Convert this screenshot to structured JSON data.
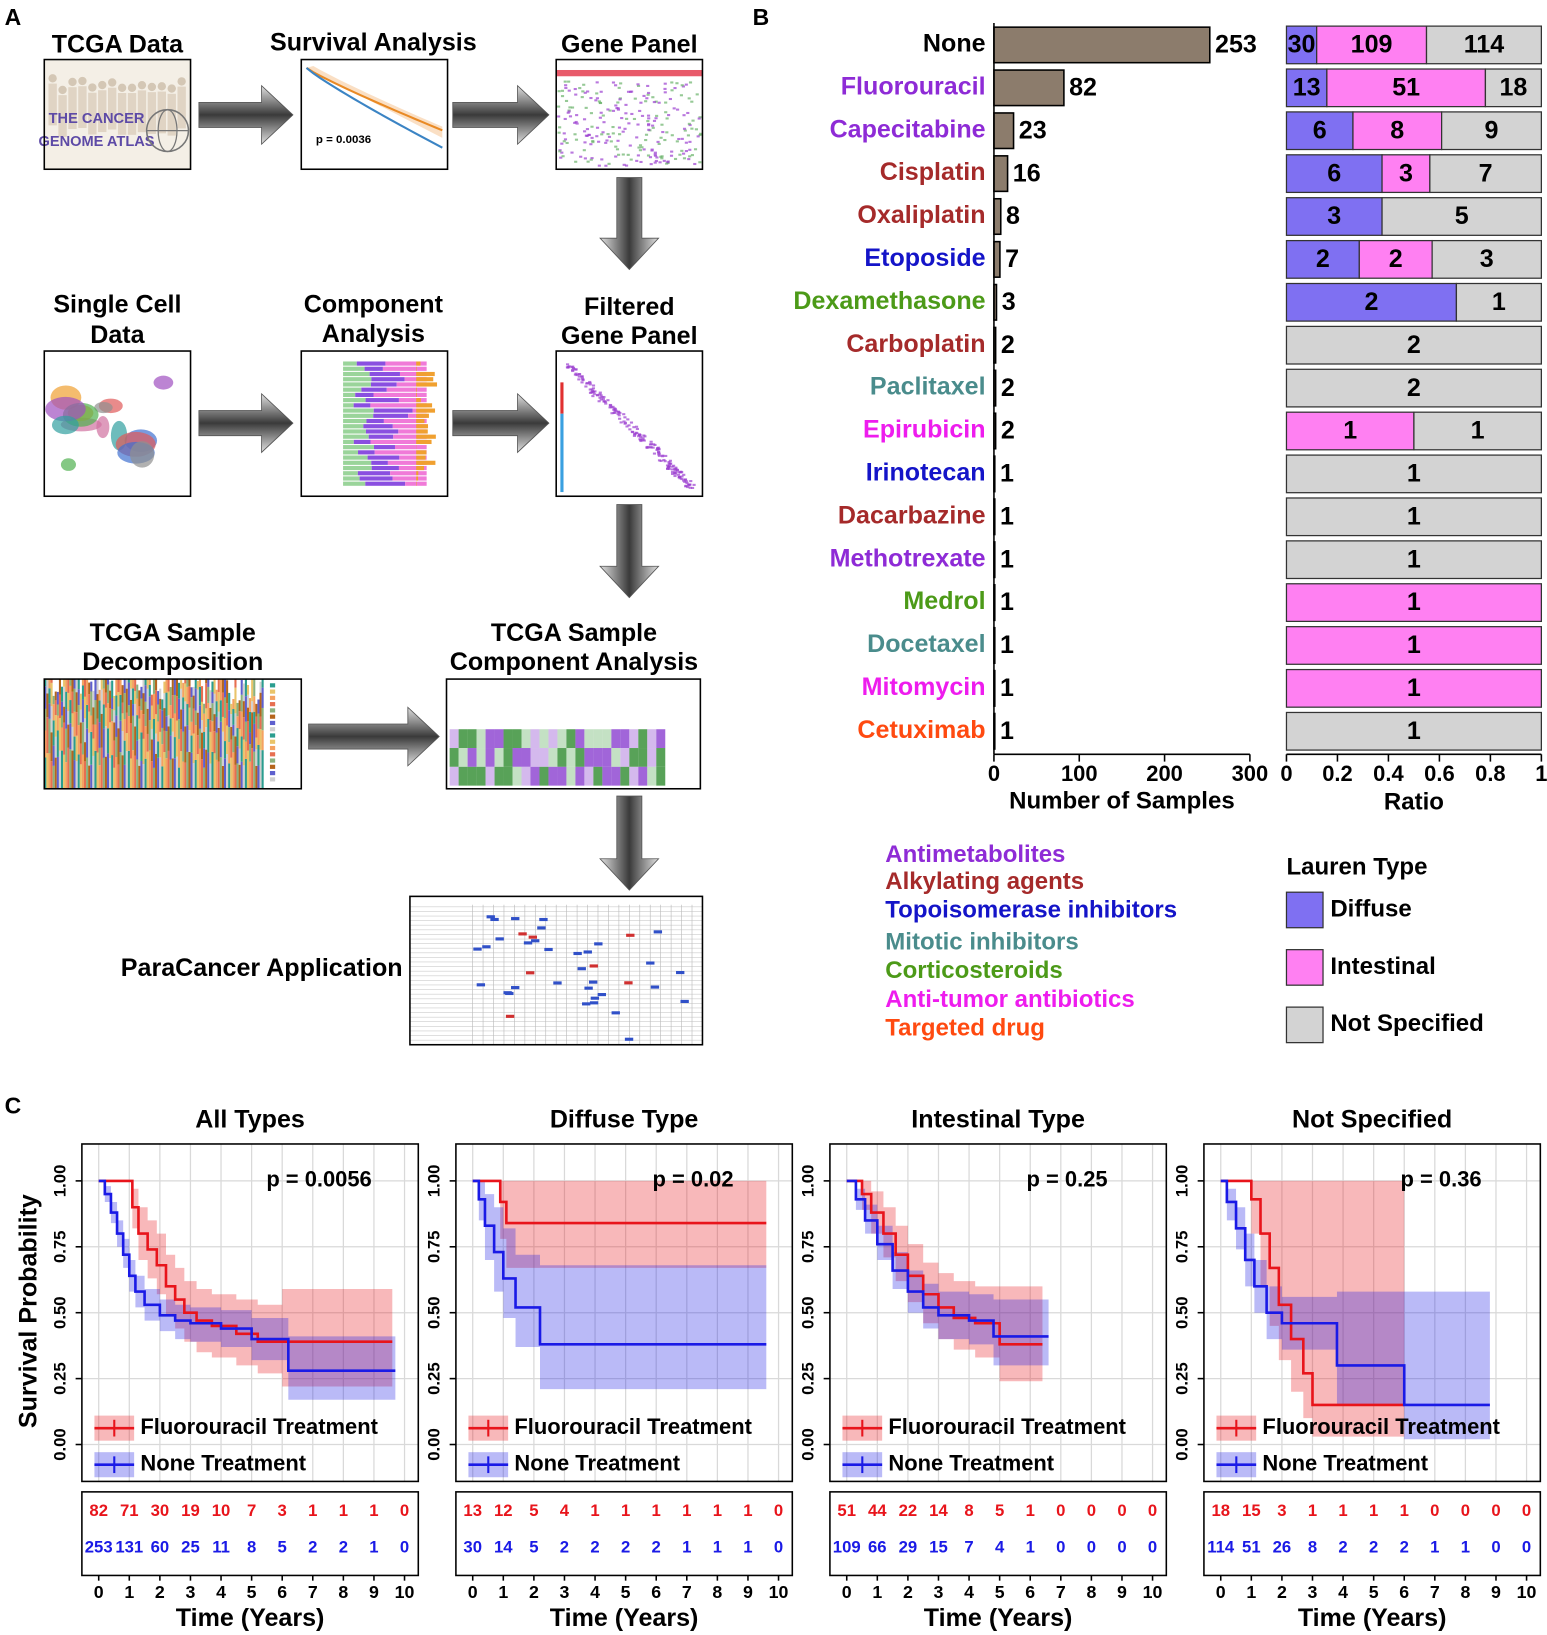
{
  "panel_labels": [
    "A",
    "B",
    "C"
  ],
  "diagram": {
    "steps": [
      {
        "title": [
          "TCGA Data"
        ]
      },
      {
        "title": [
          "Survival Analysis"
        ]
      },
      {
        "title": [
          "Gene Panel"
        ]
      },
      {
        "title": [
          "Single Cell",
          "Data"
        ]
      },
      {
        "title": [
          "Component",
          "Analysis"
        ]
      },
      {
        "title": [
          "Filtered",
          "Gene Panel"
        ]
      },
      {
        "title": [
          "TCGA Sample",
          "Decomposition"
        ]
      },
      {
        "title": [
          "TCGA Sample",
          "Component Analysis"
        ]
      },
      {
        "title": [
          "ParaCancer Application"
        ]
      }
    ],
    "tcga_logo": [
      "THE CANCER",
      "GENOME ATLAS"
    ],
    "survival_p": "p = 0.0036"
  },
  "chart_data": [
    {
      "type": "barh",
      "categories": [
        "None",
        "Fluorouracil",
        "Capecitabine",
        "Cisplatin",
        "Oxaliplatin",
        "Etoposide",
        "Dexamethasone",
        "Carboplatin",
        "Paclitaxel",
        "Epirubicin",
        "Irinotecan",
        "Dacarbazine",
        "Methotrexate",
        "Medrol",
        "Docetaxel",
        "Mitomycin",
        "Cetuximab"
      ],
      "category_colors": [
        "#000000",
        "#8e2bd6",
        "#8e2bd6",
        "#a52a2a",
        "#a52a2a",
        "#1414c8",
        "#4c9a18",
        "#a52a2a",
        "#4a8c8c",
        "#ee1cee",
        "#1414c8",
        "#a52a2a",
        "#8e2bd6",
        "#4c9a18",
        "#4a8c8c",
        "#ee1cee",
        "#ff4a10"
      ],
      "values": [
        253,
        82,
        23,
        16,
        8,
        7,
        3,
        2,
        2,
        2,
        1,
        1,
        1,
        1,
        1,
        1,
        1
      ],
      "color": "#8c7c6c",
      "xlim": [
        0,
        300
      ],
      "xticks": [
        0,
        100,
        200,
        300
      ],
      "xlabel": "Number of Samples",
      "class_legend": [
        {
          "name": "Antimetabolites",
          "color": "#8e2bd6"
        },
        {
          "name": "Alkylating agents",
          "color": "#a52a2a"
        },
        {
          "name": "Topoisomerase inhibitors",
          "color": "#1414c8"
        },
        {
          "name": "Mitotic inhibitors",
          "color": "#4a8c8c"
        },
        {
          "name": "Corticosteroids",
          "color": "#4c9a18"
        },
        {
          "name": "Anti-tumor antibiotics",
          "color": "#ee1cee"
        },
        {
          "name": "Targeted drug",
          "color": "#ff4a10"
        }
      ]
    },
    {
      "type": "stacked_ratio",
      "xlabel": "Ratio",
      "xlim": [
        0,
        1
      ],
      "xticks": [
        0,
        0.2,
        0.4,
        0.6,
        0.8,
        1
      ],
      "legend_title": "Lauren Type",
      "series": [
        {
          "name": "Diffuse",
          "color": "#7f70f2",
          "values": [
            30,
            13,
            6,
            6,
            3,
            2,
            2,
            0,
            0,
            0,
            0,
            0,
            0,
            0,
            0,
            0,
            0
          ]
        },
        {
          "name": "Intestinal",
          "color": "#ff80f2",
          "values": [
            109,
            51,
            8,
            3,
            0,
            2,
            0,
            0,
            0,
            1,
            0,
            0,
            0,
            1,
            1,
            1,
            0
          ]
        },
        {
          "name": "Not Specified",
          "color": "#d3d3d3",
          "values": [
            114,
            18,
            9,
            7,
            5,
            3,
            1,
            2,
            2,
            1,
            1,
            1,
            1,
            0,
            0,
            0,
            1
          ]
        }
      ]
    },
    {
      "type": "km",
      "title": "All Types",
      "annotation": "p = 0.0056",
      "xlabel": "Time (Years)",
      "ylabel": "Survival Probability",
      "xlim": [
        -0.55,
        10.45
      ],
      "ylim": [
        -0.14,
        1.14
      ],
      "grid": true,
      "xticks": [
        0,
        1,
        2,
        3,
        4,
        5,
        6,
        7,
        8,
        9,
        10
      ],
      "yticks": [
        {
          "value": 0,
          "label": "0.00"
        },
        {
          "value": 0.25,
          "label": "0.25"
        },
        {
          "value": 0.5,
          "label": "0.50"
        },
        {
          "value": 0.75,
          "label": "0.75"
        },
        {
          "value": 1,
          "label": "1.00"
        }
      ],
      "series": [
        {
          "name": "Fluorouracil Treatment",
          "color": "#e8141b",
          "x": [
            0,
            1.1,
            1.3,
            1.6,
            1.9,
            2.2,
            2.5,
            2.8,
            3.2,
            3.7,
            4.5,
            5.2,
            6.0,
            9.6
          ],
          "values": [
            1,
            0.9,
            0.8,
            0.74,
            0.68,
            0.6,
            0.55,
            0.5,
            0.47,
            0.45,
            0.42,
            0.39,
            0.39,
            0.39
          ],
          "lower": [
            1,
            0.82,
            0.7,
            0.63,
            0.57,
            0.49,
            0.44,
            0.39,
            0.35,
            0.33,
            0.3,
            0.27,
            0.22,
            0.22
          ],
          "upper": [
            1,
            0.97,
            0.9,
            0.85,
            0.8,
            0.72,
            0.67,
            0.62,
            0.59,
            0.57,
            0.55,
            0.53,
            0.59,
            0.59
          ],
          "at_risk": [
            82,
            71,
            30,
            19,
            10,
            7,
            3,
            1,
            1,
            1,
            0
          ]
        },
        {
          "name": "None Treatment",
          "color": "#1a1ae6",
          "x": [
            0,
            0.2,
            0.4,
            0.6,
            0.8,
            1.0,
            1.2,
            1.5,
            2.0,
            2.5,
            3.0,
            4.0,
            5.0,
            6.2,
            9.7
          ],
          "values": [
            1,
            0.95,
            0.88,
            0.8,
            0.72,
            0.64,
            0.58,
            0.53,
            0.49,
            0.47,
            0.46,
            0.44,
            0.4,
            0.28,
            0.28
          ],
          "lower": [
            1,
            0.92,
            0.84,
            0.75,
            0.67,
            0.58,
            0.52,
            0.47,
            0.43,
            0.4,
            0.39,
            0.37,
            0.32,
            0.17,
            0.17
          ],
          "upper": [
            1,
            0.98,
            0.92,
            0.85,
            0.78,
            0.7,
            0.64,
            0.59,
            0.55,
            0.53,
            0.52,
            0.51,
            0.48,
            0.41,
            0.41
          ],
          "at_risk": [
            253,
            131,
            60,
            25,
            11,
            8,
            5,
            2,
            2,
            1,
            0
          ]
        }
      ]
    },
    {
      "type": "km",
      "title": "Diffuse Type",
      "annotation": "p = 0.02",
      "xlabel": "Time (Years)",
      "xlim": [
        -0.55,
        10.45
      ],
      "ylim": [
        -0.14,
        1.14
      ],
      "grid": true,
      "xticks": [
        0,
        1,
        2,
        3,
        4,
        5,
        6,
        7,
        8,
        9,
        10
      ],
      "yticks": [
        {
          "value": 0,
          "label": "0.00"
        },
        {
          "value": 0.25,
          "label": "0.25"
        },
        {
          "value": 0.5,
          "label": "0.50"
        },
        {
          "value": 0.75,
          "label": "0.75"
        },
        {
          "value": 1,
          "label": "1.00"
        }
      ],
      "series": [
        {
          "name": "Fluorouracil Treatment",
          "color": "#e8141b",
          "x": [
            0,
            0.9,
            1.1,
            9.6
          ],
          "values": [
            1,
            0.92,
            0.84,
            0.84
          ],
          "lower": [
            1,
            0.78,
            0.67,
            0.67
          ],
          "upper": [
            1,
            1,
            1,
            1
          ],
          "at_risk": [
            13,
            12,
            5,
            4,
            1,
            1,
            1,
            1,
            1,
            1,
            0
          ]
        },
        {
          "name": "None Treatment",
          "color": "#1a1ae6",
          "x": [
            0,
            0.2,
            0.4,
            0.7,
            1.0,
            1.4,
            2.2,
            9.6
          ],
          "values": [
            1,
            0.93,
            0.83,
            0.73,
            0.63,
            0.52,
            0.38,
            0.38
          ],
          "lower": [
            1,
            0.85,
            0.7,
            0.58,
            0.48,
            0.37,
            0.21,
            0.21
          ],
          "upper": [
            1,
            1,
            0.95,
            0.9,
            0.82,
            0.72,
            0.68,
            0.68
          ],
          "at_risk": [
            30,
            14,
            5,
            2,
            2,
            2,
            2,
            1,
            1,
            1,
            0
          ]
        }
      ]
    },
    {
      "type": "km",
      "title": "Intestinal Type",
      "annotation": "p = 0.25",
      "xlabel": "Time (Years)",
      "xlim": [
        -0.55,
        10.45
      ],
      "ylim": [
        -0.14,
        1.14
      ],
      "grid": true,
      "xticks": [
        0,
        1,
        2,
        3,
        4,
        5,
        6,
        7,
        8,
        9,
        10
      ],
      "yticks": [
        {
          "value": 0,
          "label": "0.00"
        },
        {
          "value": 0.25,
          "label": "0.25"
        },
        {
          "value": 0.5,
          "label": "0.50"
        },
        {
          "value": 0.75,
          "label": "0.75"
        },
        {
          "value": 1,
          "label": "1.00"
        }
      ],
      "series": [
        {
          "name": "Fluorouracil Treatment",
          "color": "#e8141b",
          "x": [
            0,
            0.5,
            0.8,
            1.2,
            1.6,
            2.0,
            2.5,
            3.0,
            3.5,
            4.2,
            5.0,
            6.4
          ],
          "values": [
            1,
            0.95,
            0.88,
            0.8,
            0.72,
            0.64,
            0.57,
            0.52,
            0.48,
            0.46,
            0.38,
            0.38
          ],
          "lower": [
            1,
            0.89,
            0.8,
            0.71,
            0.62,
            0.54,
            0.46,
            0.4,
            0.36,
            0.33,
            0.24,
            0.24
          ],
          "upper": [
            1,
            1,
            0.96,
            0.9,
            0.83,
            0.76,
            0.69,
            0.65,
            0.62,
            0.6,
            0.6,
            0.6
          ],
          "at_risk": [
            51,
            44,
            22,
            14,
            8,
            5,
            1,
            0,
            0,
            0,
            0
          ]
        },
        {
          "name": "None Treatment",
          "color": "#1a1ae6",
          "x": [
            0,
            0.3,
            0.6,
            1.0,
            1.5,
            2.0,
            2.5,
            3.0,
            4.0,
            4.8,
            6.6
          ],
          "values": [
            1,
            0.93,
            0.85,
            0.76,
            0.66,
            0.58,
            0.52,
            0.49,
            0.47,
            0.41,
            0.41
          ],
          "lower": [
            1,
            0.89,
            0.8,
            0.7,
            0.59,
            0.5,
            0.44,
            0.4,
            0.38,
            0.3,
            0.3
          ],
          "upper": [
            1,
            0.97,
            0.91,
            0.83,
            0.73,
            0.66,
            0.61,
            0.58,
            0.57,
            0.55,
            0.55
          ],
          "at_risk": [
            109,
            66,
            29,
            15,
            7,
            4,
            1,
            0,
            0,
            0,
            0
          ]
        }
      ]
    },
    {
      "type": "km",
      "title": "Not Specified",
      "annotation": "p = 0.36",
      "xlabel": "Time (Years)",
      "xlim": [
        -0.55,
        10.45
      ],
      "ylim": [
        -0.14,
        1.14
      ],
      "grid": true,
      "xticks": [
        0,
        1,
        2,
        3,
        4,
        5,
        6,
        7,
        8,
        9,
        10
      ],
      "yticks": [
        {
          "value": 0,
          "label": "0.00"
        },
        {
          "value": 0.25,
          "label": "0.25"
        },
        {
          "value": 0.5,
          "label": "0.50"
        },
        {
          "value": 0.75,
          "label": "0.75"
        },
        {
          "value": 1,
          "label": "1.00"
        }
      ],
      "series": [
        {
          "name": "Fluorouracil Treatment",
          "color": "#e8141b",
          "x": [
            0,
            1.0,
            1.3,
            1.6,
            1.9,
            2.3,
            2.7,
            3.0,
            6.0
          ],
          "values": [
            1,
            0.93,
            0.8,
            0.67,
            0.53,
            0.4,
            0.27,
            0.15,
            0.15
          ],
          "lower": [
            1,
            0.8,
            0.6,
            0.45,
            0.32,
            0.2,
            0.1,
            0.03,
            0.03
          ],
          "upper": [
            1,
            1,
            1,
            1,
            1,
            1,
            1,
            1,
            1
          ],
          "at_risk": [
            18,
            15,
            3,
            1,
            1,
            1,
            1,
            0,
            0,
            0,
            0
          ]
        },
        {
          "name": "None Treatment",
          "color": "#1a1ae6",
          "x": [
            0,
            0.2,
            0.5,
            0.8,
            1.1,
            1.5,
            2.0,
            3.8,
            6.0,
            8.8
          ],
          "values": [
            1,
            0.92,
            0.82,
            0.7,
            0.6,
            0.5,
            0.46,
            0.3,
            0.15,
            0.15
          ],
          "lower": [
            1,
            0.85,
            0.74,
            0.6,
            0.5,
            0.4,
            0.36,
            0.15,
            0.02,
            0.02
          ],
          "upper": [
            1,
            0.97,
            0.9,
            0.8,
            0.7,
            0.6,
            0.56,
            0.58,
            0.58,
            0.58
          ],
          "at_risk": [
            114,
            51,
            26,
            8,
            2,
            2,
            2,
            1,
            1,
            0,
            0
          ]
        }
      ]
    }
  ]
}
